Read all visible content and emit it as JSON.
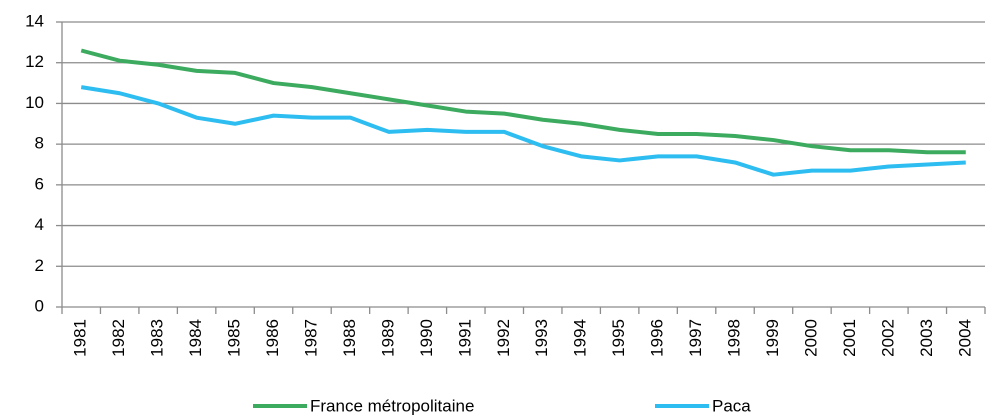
{
  "chart_data": {
    "type": "line",
    "categories": [
      "1981",
      "1982",
      "1983",
      "1984",
      "1985",
      "1986",
      "1987",
      "1988",
      "1989",
      "1990",
      "1991",
      "1992",
      "1993",
      "1994",
      "1995",
      "1996",
      "1997",
      "1998",
      "1999",
      "2000",
      "2001",
      "2002",
      "2003",
      "2004"
    ],
    "series": [
      {
        "name": "France métropolitaine",
        "color": "#3dab5f",
        "values": [
          12.6,
          12.1,
          11.9,
          11.6,
          11.5,
          11.0,
          10.8,
          10.5,
          10.2,
          9.9,
          9.6,
          9.5,
          9.2,
          9.0,
          8.7,
          8.5,
          8.5,
          8.4,
          8.2,
          7.9,
          7.7,
          7.7,
          7.6,
          7.6
        ]
      },
      {
        "name": "Paca",
        "color": "#2ebdf0",
        "values": [
          10.8,
          10.5,
          10.0,
          9.3,
          9.0,
          9.4,
          9.3,
          9.3,
          8.6,
          8.7,
          8.6,
          8.6,
          7.9,
          7.4,
          7.2,
          7.4,
          7.4,
          7.1,
          6.5,
          6.7,
          6.7,
          6.9,
          7.0,
          7.1
        ]
      }
    ],
    "ylim": [
      0,
      14
    ],
    "yticks": [
      0,
      2,
      4,
      6,
      8,
      10,
      12,
      14
    ],
    "grid": true,
    "legend": "bottom"
  }
}
